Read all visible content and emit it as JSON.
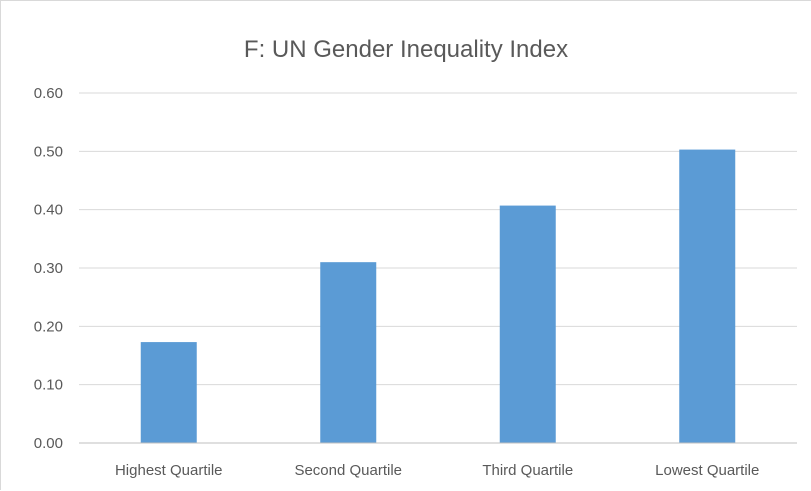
{
  "chart_data": {
    "type": "bar",
    "title": "F: UN Gender Inequality Index",
    "xlabel": "",
    "ylabel": "",
    "categories": [
      "Highest Quartile",
      "Second Quartile",
      "Third Quartile",
      "Lowest Quartile"
    ],
    "values": [
      0.173,
      0.31,
      0.407,
      0.503
    ],
    "ylim": [
      0,
      0.6
    ],
    "y_ticks": [
      "0.00",
      "0.10",
      "0.20",
      "0.30",
      "0.40",
      "0.50",
      "0.60"
    ],
    "grid": true,
    "legend": "none",
    "bar_color": "#5b9bd5"
  }
}
